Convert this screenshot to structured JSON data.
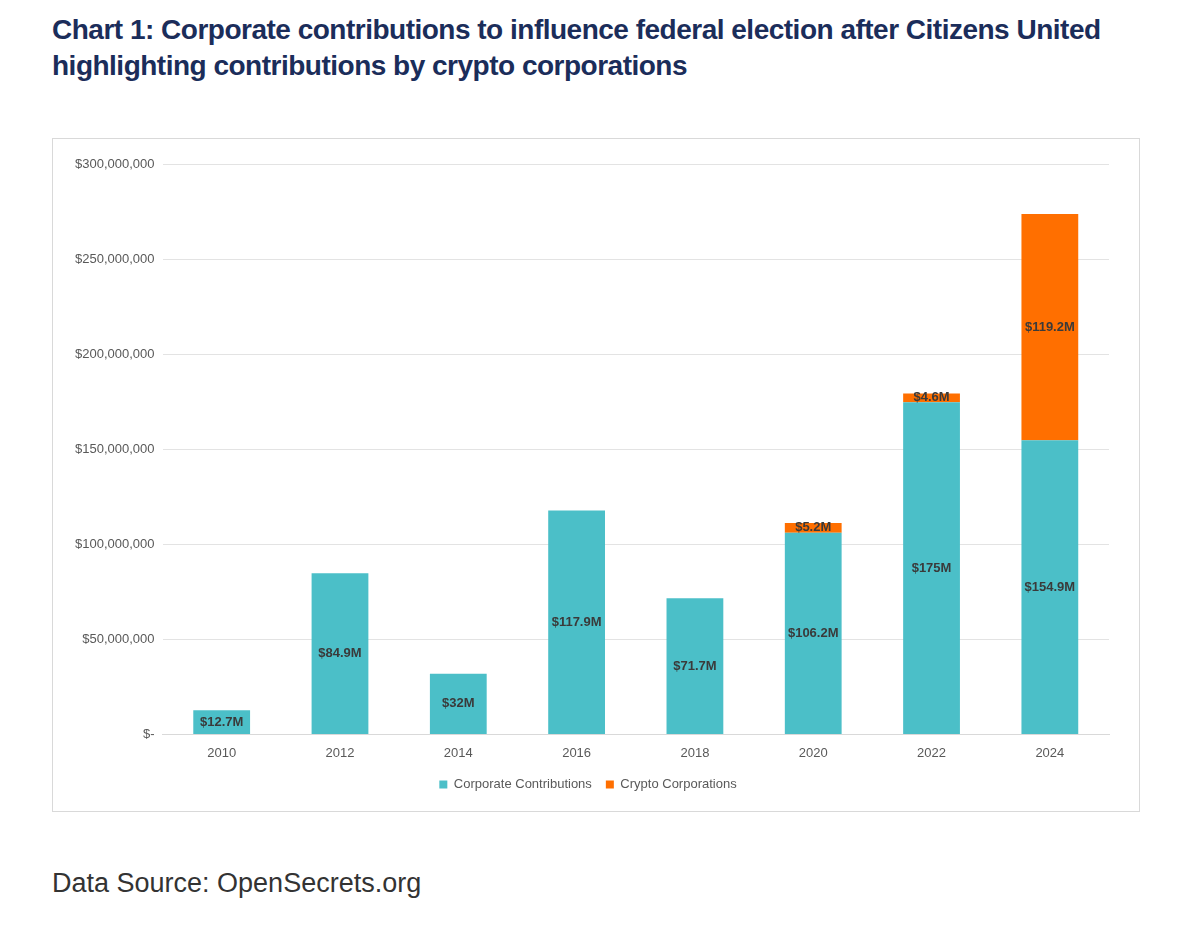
{
  "chart_data": {
    "type": "bar",
    "title": "Chart 1: Corporate contributions to influence federal election after Citizens United highlighting contributions by crypto corporations",
    "source": "Data Source: OpenSecrets.org",
    "categories": [
      "2010",
      "2012",
      "2014",
      "2016",
      "2018",
      "2020",
      "2022",
      "2024"
    ],
    "series": [
      {
        "name": "Corporate Contributions",
        "color": "#4bbfc8",
        "values": [
          12700000,
          84900000,
          32000000,
          117900000,
          71700000,
          106200000,
          175000000,
          154900000
        ],
        "value_labels": [
          "$12.7M",
          "$84.9M",
          "$32M",
          "$117.9M",
          "$71.7M",
          "$106.2M",
          "$175M",
          "$154.9M"
        ]
      },
      {
        "name": "Crypto Corporations",
        "color": "#ff6f00",
        "values": [
          null,
          null,
          null,
          null,
          null,
          5200000,
          4600000,
          119200000
        ],
        "value_labels": [
          null,
          null,
          null,
          null,
          null,
          "$5.2M",
          "$4.6M",
          "$119.2M"
        ]
      }
    ],
    "stacked": true,
    "data_labels": true,
    "ylim": [
      0,
      300000000
    ],
    "yticks": [
      {
        "value": 0,
        "label": "$-"
      },
      {
        "value": 50000000,
        "label": "$50,000,000"
      },
      {
        "value": 100000000,
        "label": "$100,000,000"
      },
      {
        "value": 150000000,
        "label": "$150,000,000"
      },
      {
        "value": 200000000,
        "label": "$200,000,000"
      },
      {
        "value": 250000000,
        "label": "$250,000,000"
      },
      {
        "value": 300000000,
        "label": "$300,000,000"
      }
    ],
    "grid": true,
    "legend": "bottom"
  }
}
